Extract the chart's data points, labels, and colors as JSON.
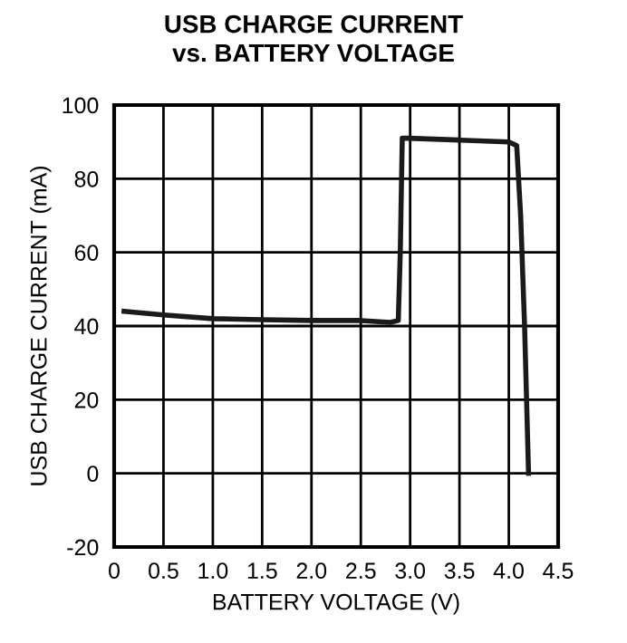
{
  "chart_data": {
    "type": "line",
    "title": "USB CHARGE CURRENT\nvs. BATTERY VOLTAGE",
    "xlabel": "BATTERY VOLTAGE (V)",
    "ylabel": "USB CHARGE CURRENT (mA)",
    "series": [
      {
        "color": "#1a1a1a",
        "x": [
          0.1,
          0.5,
          1.0,
          1.5,
          2.0,
          2.5,
          2.8,
          2.88,
          2.9,
          2.92,
          2.98,
          3.5,
          4.0,
          4.08,
          4.12,
          4.16,
          4.2
        ],
        "values": [
          44,
          43,
          42,
          41.7,
          41.5,
          41.5,
          41,
          41.5,
          60,
          91,
          91,
          90.5,
          90,
          89,
          70,
          40,
          0
        ]
      }
    ],
    "xlim": [
      0,
      4.5
    ],
    "xticks": [
      0,
      {
        "value": 0.5,
        "label": "0.5"
      },
      {
        "value": 1,
        "label": "1.0"
      },
      {
        "value": 1.5,
        "label": "1.5"
      },
      {
        "value": 2,
        "label": "2.0"
      },
      {
        "value": 2.5,
        "label": "2.5"
      },
      {
        "value": 3,
        "label": "3.0"
      },
      {
        "value": 3.5,
        "label": "3.5"
      },
      {
        "value": 4,
        "label": "4.0"
      },
      {
        "value": 4.5,
        "label": "4.5"
      }
    ],
    "ylim": [
      -20,
      100
    ],
    "yticks": [
      -20,
      0,
      20,
      40,
      60,
      80,
      100
    ],
    "grid": true,
    "marker": "none",
    "line_style": "solid"
  }
}
